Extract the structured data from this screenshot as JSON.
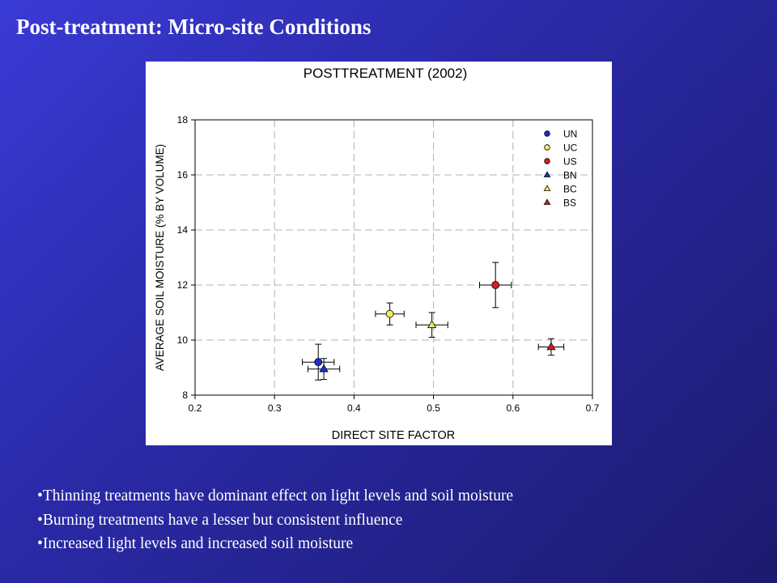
{
  "slide": {
    "title": "Post-treatment: Micro-site Conditions",
    "bullets": [
      "Thinning treatments have dominant effect on light levels and soil moisture",
      "Burning treatments have a lesser  but consistent influence",
      "Increased light levels and increased soil moisture"
    ]
  },
  "chart_data": {
    "type": "scatter",
    "title": "POSTTREATMENT  (2002)",
    "xlabel": "DIRECT SITE FACTOR",
    "ylabel": "AVERAGE SOIL MOISTURE (% BY VOLUME)",
    "xlim": [
      0.2,
      0.7
    ],
    "ylim": [
      8,
      18
    ],
    "xticks": [
      "0.2",
      "0.3",
      "0.4",
      "0.5",
      "0.6",
      "0.7"
    ],
    "yticks": [
      "8",
      "10",
      "12",
      "14",
      "16",
      "18"
    ],
    "grid": true,
    "legend_position": "top-right",
    "series": [
      {
        "name": "UN",
        "marker": "circle",
        "color": "#1a2fd8",
        "x": 0.355,
        "y": 9.2,
        "xerr": 0.02,
        "yerr": 0.65
      },
      {
        "name": "UC",
        "marker": "circle",
        "color": "#f2ee5a",
        "x": 0.445,
        "y": 10.95,
        "xerr": 0.018,
        "yerr": 0.4
      },
      {
        "name": "US",
        "marker": "circle",
        "color": "#d42020",
        "x": 0.578,
        "y": 12.0,
        "xerr": 0.02,
        "yerr": 0.82
      },
      {
        "name": "BN",
        "marker": "triangle",
        "color": "#1a2fd8",
        "x": 0.362,
        "y": 8.95,
        "xerr": 0.02,
        "yerr": 0.38
      },
      {
        "name": "BC",
        "marker": "triangle",
        "color": "#f2ee5a",
        "x": 0.498,
        "y": 10.55,
        "xerr": 0.02,
        "yerr": 0.45
      },
      {
        "name": "BS",
        "marker": "triangle",
        "color": "#d42020",
        "x": 0.648,
        "y": 9.75,
        "xerr": 0.016,
        "yerr": 0.3
      }
    ]
  }
}
